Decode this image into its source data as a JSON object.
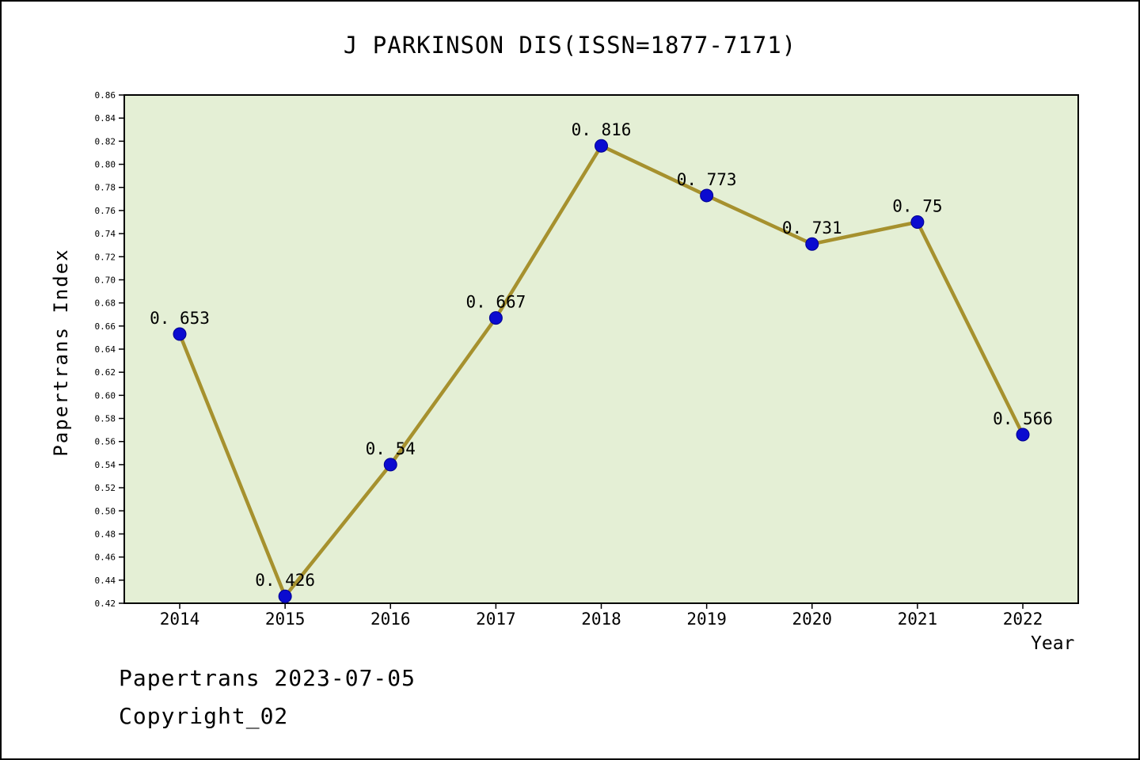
{
  "title": "J PARKINSON DIS(ISSN=1877-7171)",
  "footer": {
    "line1": "Papertrans 2023-07-05",
    "line2": "Copyright_02"
  },
  "chart_data": {
    "type": "line",
    "x": [
      2014,
      2015,
      2016,
      2017,
      2018,
      2019,
      2020,
      2021,
      2022
    ],
    "values": [
      0.653,
      0.426,
      0.54,
      0.667,
      0.816,
      0.773,
      0.731,
      0.75,
      0.566
    ],
    "point_labels": [
      "0. 653",
      "0. 426",
      "0. 54",
      "0. 667",
      "0. 816",
      "0. 773",
      "0. 731",
      "0. 75",
      "0. 566"
    ],
    "title": "J PARKINSON DIS(ISSN=1877-7171)",
    "xlabel": "Year",
    "ylabel": "Papertrans Index",
    "ylim": [
      0.42,
      0.86
    ],
    "ytick_step": 0.02,
    "grid": false,
    "legend": "none",
    "colors": {
      "line": "#a6912e",
      "marker": "#0b0bd0",
      "marker_edge": "#000090",
      "plot_bg": "#e4efd5",
      "axis": "#000000",
      "text": "#000000"
    }
  }
}
